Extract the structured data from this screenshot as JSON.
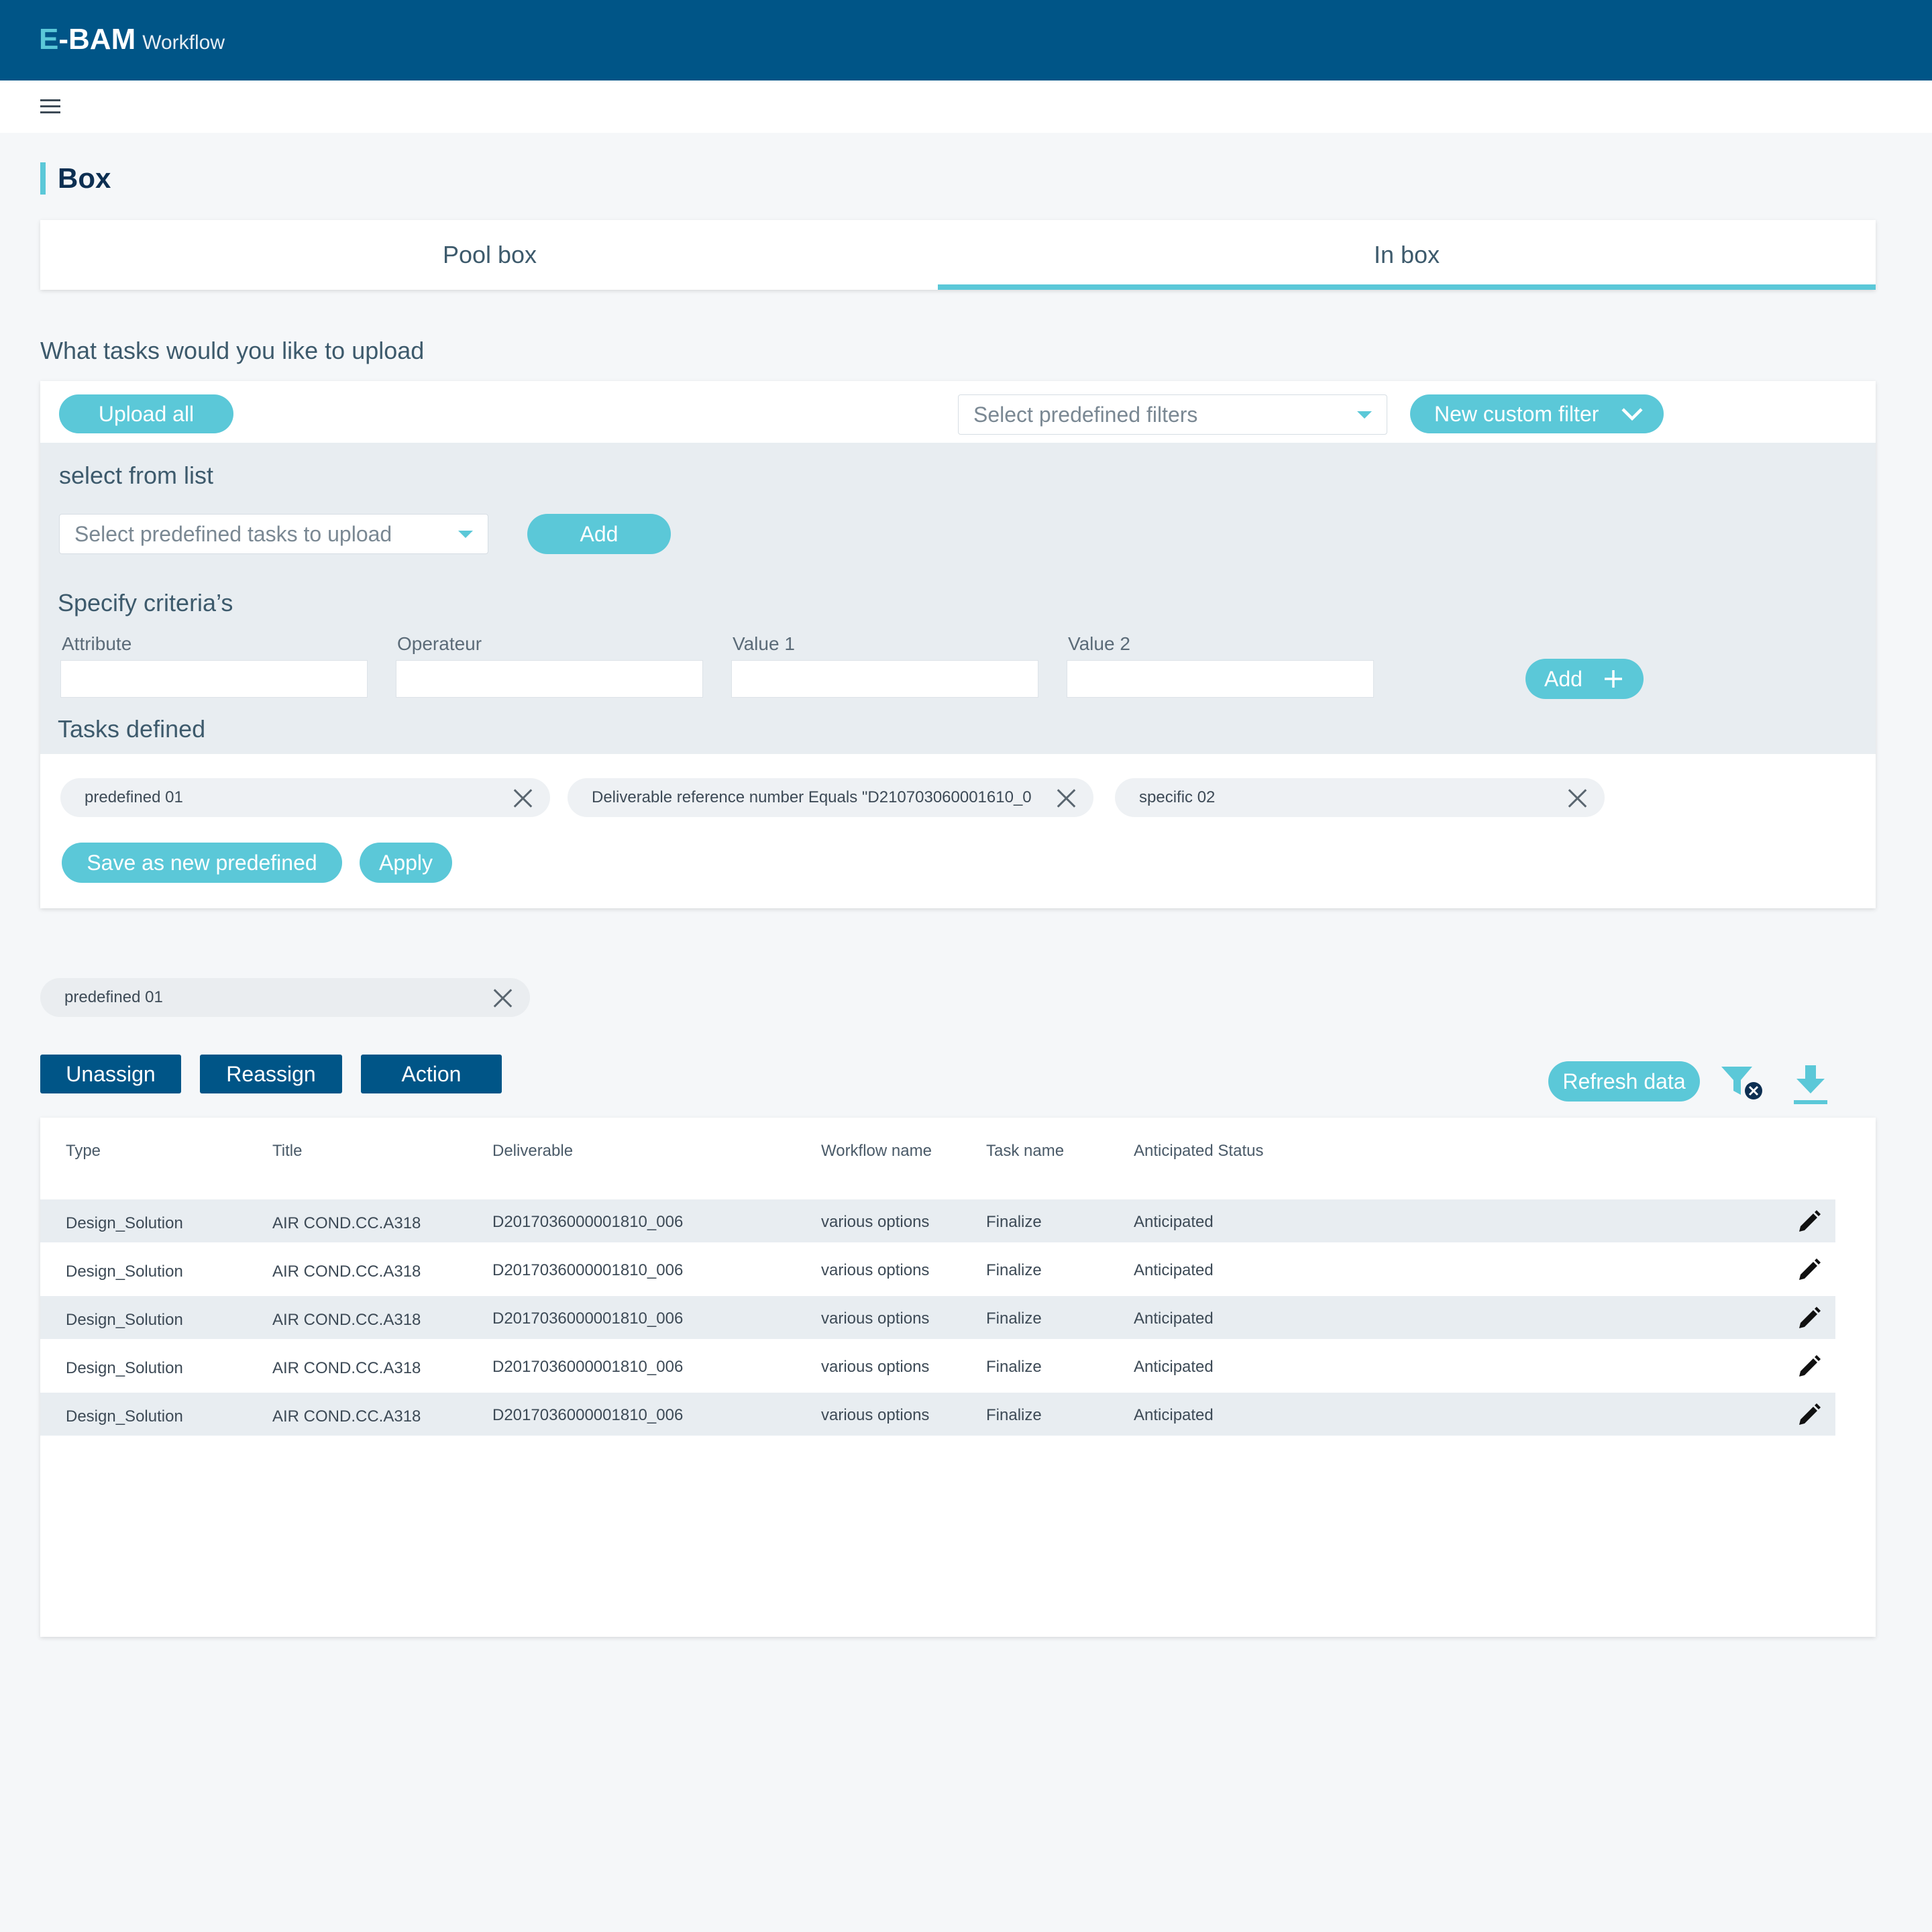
{
  "header": {
    "brand_e": "E",
    "brand_rest": "-BAM",
    "brand_sub": "Workflow"
  },
  "page": {
    "title": "Box"
  },
  "tabs": [
    {
      "label": "Pool box",
      "active": false
    },
    {
      "label": "In box",
      "active": true
    }
  ],
  "upload": {
    "question": "What tasks would you like to upload",
    "upload_all": "Upload all",
    "predefined_filters_placeholder": "Select predefined filters",
    "new_custom_filter": "New custom filter",
    "select_from_list": "select from list",
    "predefined_tasks_placeholder": "Select predefined tasks to upload",
    "add": "Add",
    "specify_criteria": "Specify criteria’s",
    "criteria_labels": [
      "Attribute",
      "Operateur",
      "Value 1",
      "Value 2"
    ],
    "add_criteria": "Add",
    "tasks_defined": "Tasks defined",
    "chips": [
      "predefined 01",
      "Deliverable reference number Equals \"D210703060001610_0",
      "specific 02"
    ],
    "save_as_new": "Save as new predefined",
    "apply": "Apply"
  },
  "active_filter": {
    "label": "predefined 01"
  },
  "actions": {
    "unassign": "Unassign",
    "reassign": "Reassign",
    "action": "Action",
    "refresh": "Refresh data"
  },
  "table": {
    "columns": [
      "Type",
      "Title",
      "Deliverable",
      "Workflow name",
      "Task name",
      "Anticipated Status"
    ],
    "rows": [
      [
        "Design_Solution",
        "AIR COND.CC.A318",
        "D2017036000001810_006",
        "various options",
        "Finalize",
        "Anticipated"
      ],
      [
        "Design_Solution",
        "AIR COND.CC.A318",
        "D2017036000001810_006",
        "various options",
        "Finalize",
        "Anticipated"
      ],
      [
        "Design_Solution",
        "AIR COND.CC.A318",
        "D2017036000001810_006",
        "various options",
        "Finalize",
        "Anticipated"
      ],
      [
        "Design_Solution",
        "AIR COND.CC.A318",
        "D2017036000001810_006",
        "various options",
        "Finalize",
        "Anticipated"
      ],
      [
        "Design_Solution",
        "AIR COND.CC.A318",
        "D2017036000001810_006",
        "various options",
        "Finalize",
        "Anticipated"
      ]
    ]
  },
  "colors": {
    "primary": "#005587",
    "accent": "#5bc8d8",
    "title": "#0d2f52"
  },
  "icons": [
    "menu-icon",
    "chevron-down-icon",
    "plus-icon",
    "close-icon",
    "filter-clear-icon",
    "download-icon",
    "edit-pencil-icon"
  ]
}
